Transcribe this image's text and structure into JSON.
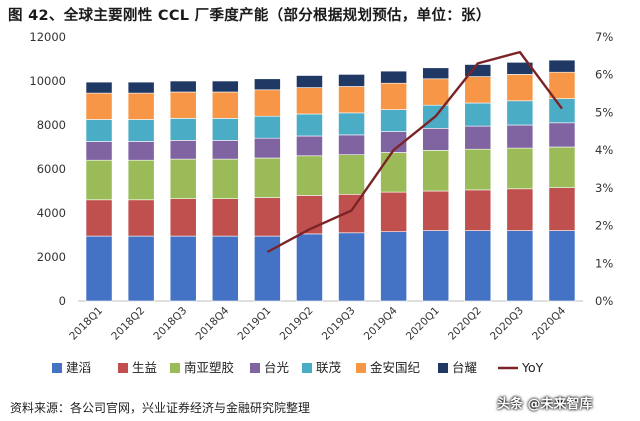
{
  "figure": {
    "title": "图 42、全球主要刚性 CCL 厂季度产能（部分根据规划预估，单位：张）",
    "source": "资料来源：各公司官网，兴业证券经济与金融研究院整理",
    "watermark": "头条 @未来智库"
  },
  "chart_data": {
    "type": "bar",
    "stacked": true,
    "categories": [
      "2018Q1",
      "2018Q2",
      "2018Q3",
      "2018Q4",
      "2019Q1",
      "2019Q2",
      "2019Q3",
      "2019Q4",
      "2020Q1",
      "2020Q2",
      "2020Q3",
      "2020Q4"
    ],
    "series": [
      {
        "name": "建滔",
        "color": "#4472C4",
        "values": [
          2950,
          2950,
          2950,
          2950,
          2950,
          3050,
          3100,
          3150,
          3200,
          3200,
          3200,
          3200
        ]
      },
      {
        "name": "生益",
        "color": "#C0504D",
        "values": [
          1650,
          1650,
          1700,
          1700,
          1750,
          1750,
          1750,
          1800,
          1800,
          1850,
          1900,
          1950
        ]
      },
      {
        "name": "南亚塑胶",
        "color": "#9BBB59",
        "values": [
          1800,
          1800,
          1800,
          1800,
          1800,
          1800,
          1800,
          1800,
          1850,
          1850,
          1850,
          1850
        ]
      },
      {
        "name": "台光",
        "color": "#8064A2",
        "values": [
          850,
          850,
          850,
          850,
          900,
          900,
          900,
          950,
          1000,
          1050,
          1050,
          1100
        ]
      },
      {
        "name": "联茂",
        "color": "#4BACC6",
        "values": [
          1000,
          1000,
          1000,
          1000,
          1000,
          1000,
          1000,
          1000,
          1050,
          1050,
          1100,
          1100
        ]
      },
      {
        "name": "金安国纪",
        "color": "#F79646",
        "values": [
          1200,
          1200,
          1200,
          1200,
          1200,
          1200,
          1200,
          1200,
          1200,
          1200,
          1200,
          1200
        ]
      },
      {
        "name": "台耀",
        "color": "#1F3864",
        "values": [
          500,
          500,
          500,
          500,
          500,
          550,
          550,
          550,
          500,
          550,
          550,
          550
        ]
      }
    ],
    "line": {
      "name": "YoY",
      "color": "#7B2427",
      "axis": "right",
      "x": [
        "2019Q1",
        "2019Q2",
        "2019Q3",
        "2019Q4",
        "2020Q1",
        "2020Q2",
        "2020Q3",
        "2020Q4"
      ],
      "values": [
        1.3,
        1.9,
        2.4,
        4.0,
        4.9,
        6.3,
        6.6,
        5.1
      ]
    },
    "y_left": {
      "min": 0,
      "max": 12000,
      "ticks": [
        "0",
        "2000",
        "4000",
        "6000",
        "8000",
        "10000",
        "12000"
      ]
    },
    "y_right": {
      "min": 0,
      "max": 7,
      "ticks": [
        "0%",
        "1%",
        "2%",
        "3%",
        "4%",
        "5%",
        "6%",
        "7%"
      ]
    },
    "legend_position": "bottom",
    "grid": false
  }
}
